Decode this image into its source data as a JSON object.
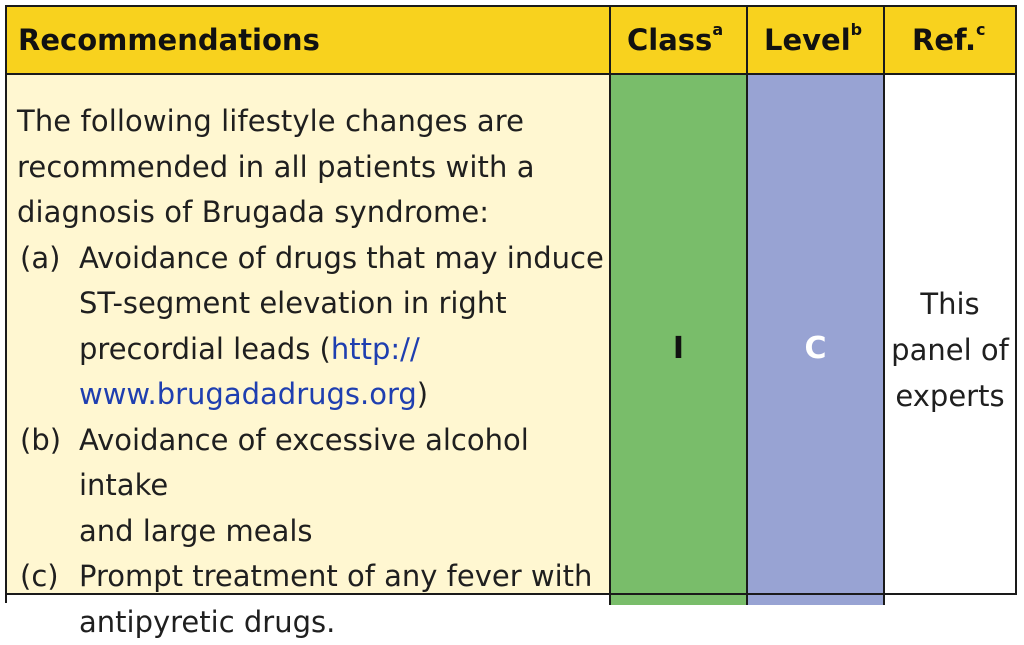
{
  "header": {
    "recommendations": "Recommendations",
    "class_label": "Class",
    "class_sup": "a",
    "level_label": "Level",
    "level_sup": "b",
    "ref_label": "Ref.",
    "ref_sup": "c"
  },
  "row": {
    "intro_lines": [
      "The following lifestyle changes are",
      "recommended in all patients with a",
      "diagnosis of Brugada syndrome:"
    ],
    "item_a": {
      "label": "(a)",
      "line1": "Avoidance of drugs that may induce",
      "line2": "ST-segment elevation in right",
      "line3_pre": "precordial leads (",
      "link_part1": "http://",
      "link_part2": "www.brugadadrugs.org",
      "line4_post": ")"
    },
    "item_b": {
      "label": "(b)",
      "line1": "Avoidance of excessive alcohol intake",
      "line2": "and large meals"
    },
    "item_c": {
      "label": "(c)",
      "line1": "Prompt treatment of any fever with",
      "line2": "antipyretic drugs."
    },
    "class_value": "I",
    "level_value": "C",
    "ref_lines": [
      "This",
      "panel of",
      "experts"
    ]
  },
  "colors": {
    "header_bg": "#f8d21e",
    "recommendation_bg": "#fff7d1",
    "class_bg": "#79bd6a",
    "level_bg": "#98a3d3",
    "link": "#1f3fb0"
  }
}
